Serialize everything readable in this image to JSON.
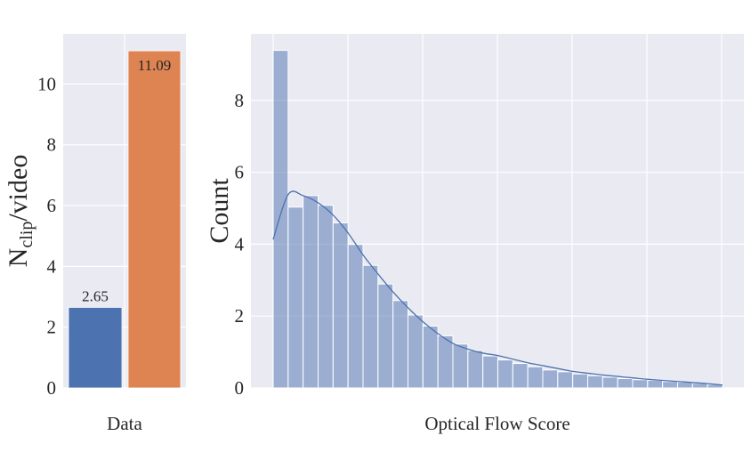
{
  "chart_data": [
    {
      "type": "bar",
      "categories": [
        "",
        ""
      ],
      "values": [
        2.65,
        11.09
      ],
      "data_labels": [
        "2.65",
        "11.09"
      ],
      "colors": [
        "#4c72b0",
        "#dd8452"
      ],
      "xlabel": "Data",
      "ylabel_main": "N",
      "ylabel_sub": "clip",
      "ylabel_rest": "/video",
      "ylim": [
        0,
        11.65
      ],
      "yticks": [
        0,
        2,
        4,
        6,
        8,
        10
      ],
      "grid": true,
      "background": "#eaeaf2"
    },
    {
      "type": "histogram",
      "xlabel": "Optical Flow Score",
      "ylabel": "Count",
      "ylim": [
        0,
        9.85
      ],
      "yticks": [
        0,
        2,
        4,
        6,
        8
      ],
      "xticks_labels_shown": false,
      "bin_counts": [
        9.39,
        5.03,
        5.35,
        5.08,
        4.59,
        3.99,
        3.41,
        2.89,
        2.43,
        2.03,
        1.72,
        1.45,
        1.22,
        1.04,
        0.89,
        0.78,
        0.68,
        0.59,
        0.5,
        0.45,
        0.39,
        0.34,
        0.3,
        0.26,
        0.23,
        0.21,
        0.18,
        0.16,
        0.13,
        0.1
      ],
      "kde_at_bin_edges": [
        4.13,
        5.38,
        5.35,
        5.15,
        4.81,
        4.31,
        3.7,
        3.17,
        2.67,
        2.23,
        1.84,
        1.51,
        1.24,
        1.08,
        0.97,
        0.9,
        0.8,
        0.7,
        0.62,
        0.54,
        0.46,
        0.41,
        0.36,
        0.32,
        0.28,
        0.24,
        0.21,
        0.18,
        0.15,
        0.12,
        0.08
      ],
      "kde": true,
      "color": "#4c72b0",
      "grid": true,
      "background": "#eaeaf2"
    }
  ]
}
